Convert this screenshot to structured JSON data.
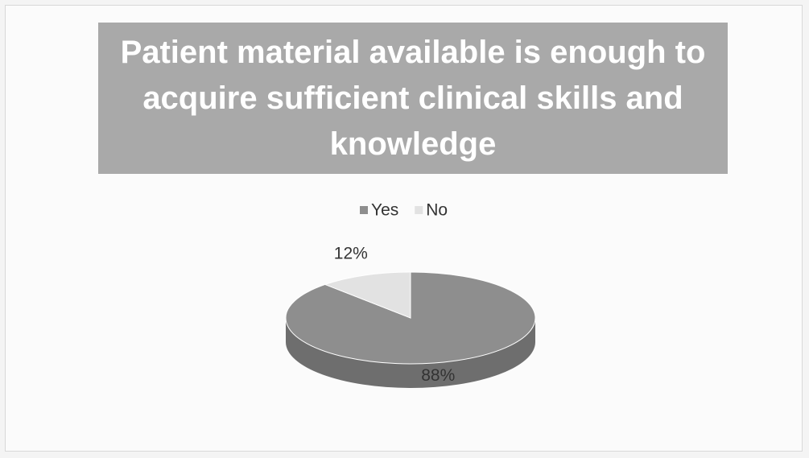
{
  "chart_data": {
    "type": "pie",
    "title": "Patient material available is enough to acquire sufficient clinical skills and knowledge",
    "categories": [
      "Yes",
      "No"
    ],
    "values": [
      88,
      12
    ],
    "value_labels": [
      "88%",
      "12%"
    ],
    "colors": [
      "#8e8e8e",
      "#e2e2e2"
    ],
    "legend": "top"
  }
}
